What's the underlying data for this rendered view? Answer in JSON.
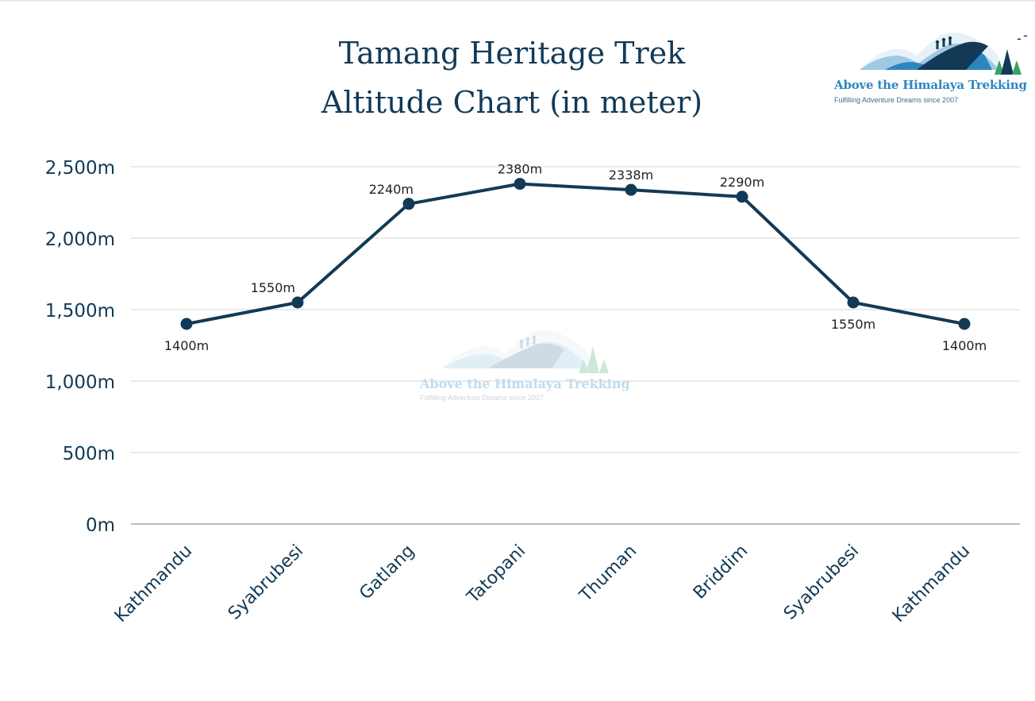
{
  "title": {
    "line1": "Tamang Heritage Trek",
    "line2": "Altitude Chart (in meter)"
  },
  "logo": {
    "name": "Above the Himalaya Trekking",
    "tagline": "Fulfilling Adventure Dreams since 2007"
  },
  "colors": {
    "line": "#123a56",
    "text": "#123a56",
    "grid": "#d4d4d4",
    "axis": "#6f7f88",
    "logo_blue": "#2e86c1",
    "logo_green": "#3aa063"
  },
  "chart_data": {
    "type": "line",
    "title": "Tamang Heritage Trek Altitude Chart (in meter)",
    "xlabel": "",
    "ylabel": "",
    "categories": [
      "Kathmandu",
      "Syabrubesi",
      "Gatlang",
      "Tatopani",
      "Thuman",
      "Briddim",
      "Syabrubesi",
      "Kathmandu"
    ],
    "series": [
      {
        "values": [
          1400,
          1550,
          2240,
          2380,
          2338,
          2290,
          1550,
          1400
        ]
      }
    ],
    "data_labels": [
      "1400m",
      "1550m",
      "2240m",
      "2380m",
      "2338m",
      "2290m",
      "1550m",
      "1400m"
    ],
    "data_label_positions": [
      "below",
      "above",
      "above",
      "above",
      "above",
      "above",
      "below",
      "below"
    ],
    "ylim": [
      0,
      2500
    ],
    "y_ticks": [
      0,
      500,
      1000,
      1500,
      2000,
      2500
    ],
    "y_tick_labels": [
      "0m",
      "500m",
      "1,000m",
      "1,500m",
      "2,000m",
      "2,500m"
    ],
    "grid": true,
    "legend": "none",
    "x_label_rotation_deg": -45
  }
}
